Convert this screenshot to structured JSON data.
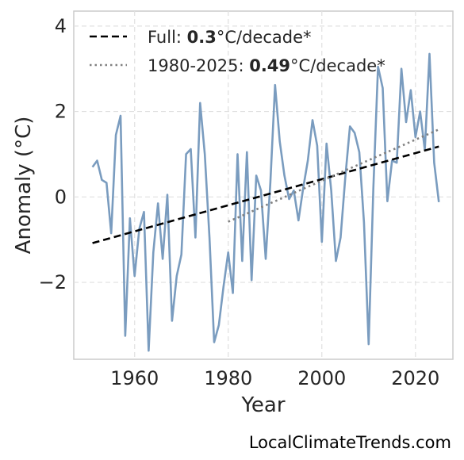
{
  "chart_data": {
    "type": "line",
    "xlabel": "Year",
    "ylabel": "Anomaly (°C)",
    "xlim": [
      1947,
      2028
    ],
    "ylim": [
      -3.8,
      4.35
    ],
    "x_ticks": [
      1960,
      1980,
      2000,
      2020
    ],
    "x_tick_labels": [
      "1960",
      "1980",
      "2000",
      "2020"
    ],
    "y_ticks": [
      -2,
      0,
      2,
      4
    ],
    "y_tick_labels": [
      "−2",
      "0",
      "2",
      "4"
    ],
    "grid": true,
    "legend_position": "top-left",
    "series": [
      {
        "style": "solid",
        "color": "#7a9cbf",
        "x": [
          1951,
          1952,
          1953,
          1954,
          1955,
          1956,
          1957,
          1958,
          1959,
          1960,
          1961,
          1962,
          1963,
          1964,
          1965,
          1966,
          1967,
          1968,
          1969,
          1970,
          1971,
          1972,
          1973,
          1974,
          1975,
          1976,
          1977,
          1978,
          1979,
          1980,
          1981,
          1982,
          1983,
          1984,
          1985,
          1986,
          1987,
          1988,
          1989,
          1990,
          1991,
          1992,
          1993,
          1994,
          1995,
          1996,
          1997,
          1998,
          1999,
          2000,
          2001,
          2002,
          2003,
          2004,
          2005,
          2006,
          2007,
          2008,
          2009,
          2010,
          2011,
          2012,
          2013,
          2014,
          2015,
          2016,
          2017,
          2018,
          2019,
          2020,
          2021,
          2022,
          2023,
          2024,
          2025
        ],
        "y": [
          0.7,
          0.85,
          0.4,
          0.33,
          -0.85,
          1.45,
          1.9,
          -3.25,
          -0.5,
          -1.85,
          -0.75,
          -0.35,
          -3.6,
          -1.3,
          -0.15,
          -1.45,
          0.05,
          -2.9,
          -1.85,
          -1.35,
          1.0,
          1.12,
          -0.95,
          2.2,
          1.0,
          -0.95,
          -3.4,
          -3.0,
          -2.1,
          -1.3,
          -2.25,
          1.0,
          -1.5,
          1.05,
          -1.95,
          0.5,
          0.15,
          -1.45,
          0.35,
          2.62,
          1.3,
          0.5,
          -0.05,
          0.15,
          -0.55,
          0.2,
          0.85,
          1.8,
          1.2,
          -1.05,
          1.25,
          0.15,
          -1.5,
          -0.95,
          0.45,
          1.65,
          1.5,
          1.05,
          -0.6,
          -3.45,
          0.2,
          3.05,
          2.55,
          -0.1,
          0.85,
          0.8,
          3.0,
          1.75,
          2.5,
          1.4,
          2.0,
          1.1,
          3.35,
          0.8,
          -0.12
        ]
      },
      {
        "style": "dashed",
        "color": "#000000",
        "x": [
          1951,
          2025
        ],
        "y": [
          -1.08,
          1.18
        ]
      },
      {
        "style": "dotted",
        "color": "#808080",
        "x": [
          1980,
          2025
        ],
        "y": [
          -0.58,
          1.58
        ]
      }
    ]
  },
  "legend": {
    "items": [
      {
        "prefix": "Full: ",
        "value": "0.3",
        "suffix": "°C/decade*"
      },
      {
        "prefix": "1980-2025: ",
        "value": "0.49",
        "suffix": "°C/decade*"
      }
    ]
  },
  "credit": "LocalClimateTrends.com"
}
